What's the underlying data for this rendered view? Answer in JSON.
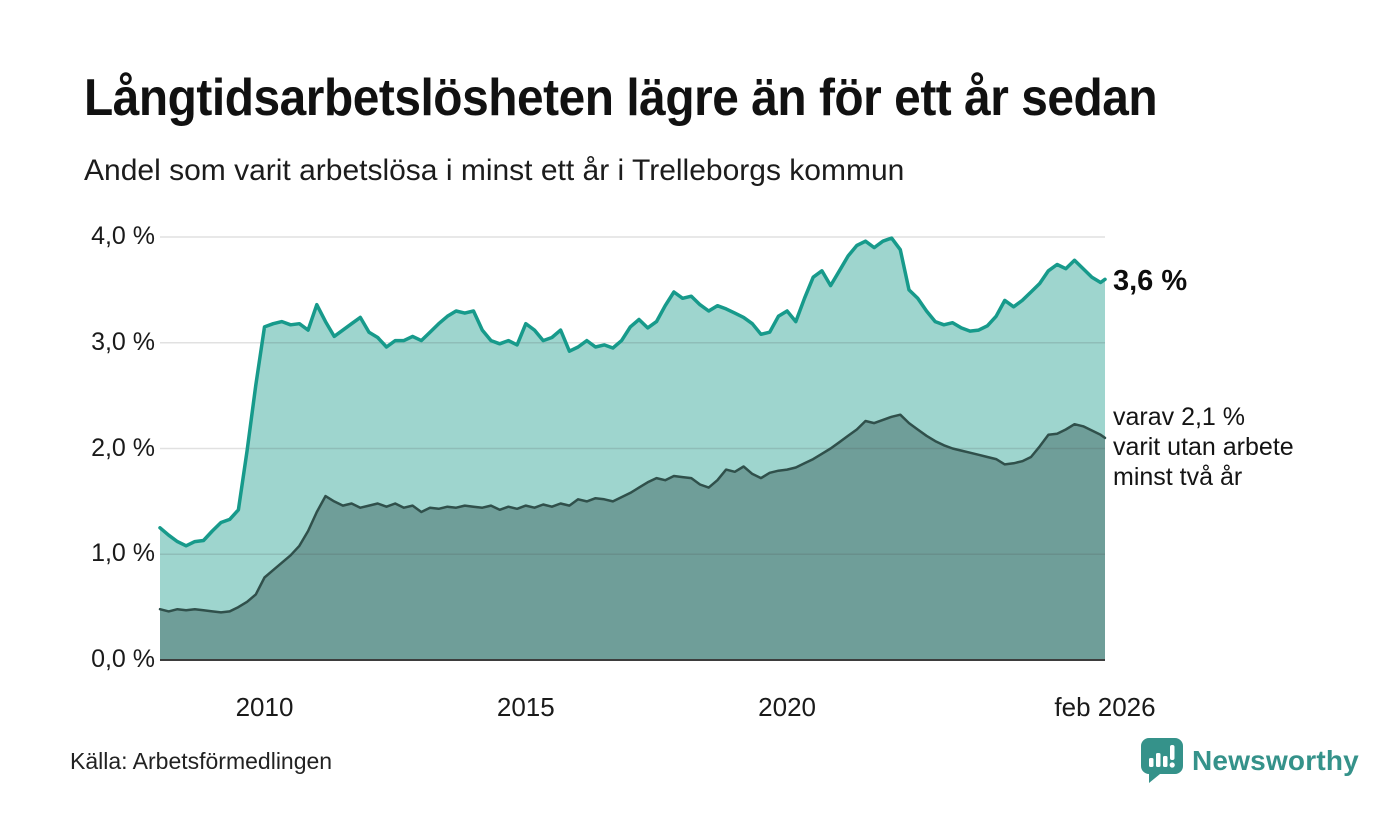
{
  "header": {
    "title": "Långtidsarbetslösheten lägre än för ett år sedan",
    "subtitle": "Andel som varit arbetslösa i minst ett år i Trelleborgs kommun"
  },
  "annotations": {
    "latest": "3,6 %",
    "series2": "varav 2,1 %\nvarit utan arbete\nminst två år"
  },
  "footer": {
    "source": "Källa: Arbetsförmedlingen",
    "brand": "Newsworthy"
  },
  "chart_data": {
    "type": "area",
    "title": "Långtidsarbetslösheten lägre än för ett år sedan",
    "subtitle": "Andel som varit arbetslösa i minst ett år i Trelleborgs kommun",
    "unit": "%",
    "x_start": 2008.0,
    "x_step_years": 0.166667,
    "x_end": 2026.0833,
    "ylim": [
      0,
      4
    ],
    "grid": true,
    "y_ticks": [
      {
        "label": "0,0 %",
        "value": 0
      },
      {
        "label": "1,0 %",
        "value": 1
      },
      {
        "label": "2,0 %",
        "value": 2
      },
      {
        "label": "3,0 %",
        "value": 3
      },
      {
        "label": "4,0 %",
        "value": 4
      }
    ],
    "x_ticks": [
      {
        "label": "2010",
        "t": 2010
      },
      {
        "label": "2015",
        "t": 2015
      },
      {
        "label": "2020",
        "t": 2020
      },
      {
        "label": "feb 2026",
        "t": 2026.0833
      }
    ],
    "series": [
      {
        "name": "Arbetslösa minst ett år",
        "latest_label": "3,6 %",
        "latest_value": 3.6,
        "line_color": "#179a8b",
        "fill_color": "#9ed5ce",
        "line_width": 3.5,
        "values": [
          1.25,
          1.18,
          1.12,
          1.08,
          1.12,
          1.13,
          1.22,
          1.3,
          1.33,
          1.42,
          1.98,
          2.6,
          3.15,
          3.18,
          3.2,
          3.17,
          3.18,
          3.12,
          3.36,
          3.2,
          3.06,
          3.12,
          3.18,
          3.24,
          3.1,
          3.05,
          2.96,
          3.02,
          3.02,
          3.06,
          3.02,
          3.1,
          3.18,
          3.25,
          3.3,
          3.28,
          3.3,
          3.12,
          3.02,
          2.99,
          3.02,
          2.98,
          3.18,
          3.12,
          3.02,
          3.05,
          3.12,
          2.92,
          2.96,
          3.02,
          2.96,
          2.98,
          2.95,
          3.02,
          3.15,
          3.22,
          3.14,
          3.2,
          3.35,
          3.48,
          3.42,
          3.44,
          3.36,
          3.3,
          3.35,
          3.32,
          3.28,
          3.24,
          3.18,
          3.08,
          3.1,
          3.25,
          3.3,
          3.2,
          3.42,
          3.62,
          3.68,
          3.54,
          3.68,
          3.82,
          3.92,
          3.96,
          3.9,
          3.96,
          3.99,
          3.88,
          3.5,
          3.42,
          3.3,
          3.2,
          3.17,
          3.19,
          3.14,
          3.11,
          3.12,
          3.16,
          3.25,
          3.4,
          3.34,
          3.4,
          3.48,
          3.56,
          3.68,
          3.74,
          3.7,
          3.78,
          3.7,
          3.62,
          3.57,
          3.6
        ]
      },
      {
        "name": "varav utan arbete minst två år",
        "latest_label": "varav 2,1 %",
        "latest_value": 2.1,
        "line_color": "#30504b",
        "fill_color": "#6f9e99",
        "line_width": 2.5,
        "values": [
          0.48,
          0.46,
          0.48,
          0.47,
          0.48,
          0.47,
          0.46,
          0.45,
          0.46,
          0.5,
          0.55,
          0.62,
          0.78,
          0.85,
          0.92,
          0.99,
          1.08,
          1.22,
          1.4,
          1.55,
          1.5,
          1.46,
          1.48,
          1.44,
          1.46,
          1.48,
          1.45,
          1.48,
          1.44,
          1.46,
          1.4,
          1.44,
          1.43,
          1.45,
          1.44,
          1.46,
          1.45,
          1.44,
          1.46,
          1.42,
          1.45,
          1.43,
          1.46,
          1.44,
          1.47,
          1.45,
          1.48,
          1.46,
          1.52,
          1.5,
          1.53,
          1.52,
          1.5,
          1.54,
          1.58,
          1.63,
          1.68,
          1.72,
          1.7,
          1.74,
          1.73,
          1.72,
          1.66,
          1.63,
          1.7,
          1.8,
          1.78,
          1.83,
          1.76,
          1.72,
          1.77,
          1.79,
          1.8,
          1.82,
          1.86,
          1.9,
          1.95,
          2.0,
          2.06,
          2.12,
          2.18,
          2.26,
          2.24,
          2.27,
          2.3,
          2.32,
          2.24,
          2.18,
          2.12,
          2.07,
          2.03,
          2.0,
          1.98,
          1.96,
          1.94,
          1.92,
          1.9,
          1.85,
          1.86,
          1.88,
          1.92,
          2.02,
          2.13,
          2.14,
          2.18,
          2.23,
          2.21,
          2.17,
          2.13,
          2.1
        ]
      }
    ],
    "colors": {
      "gridline": "rgba(70,70,70,0.16)",
      "baseline": "#3d3d3d",
      "brand_teal": "#35928a"
    }
  }
}
